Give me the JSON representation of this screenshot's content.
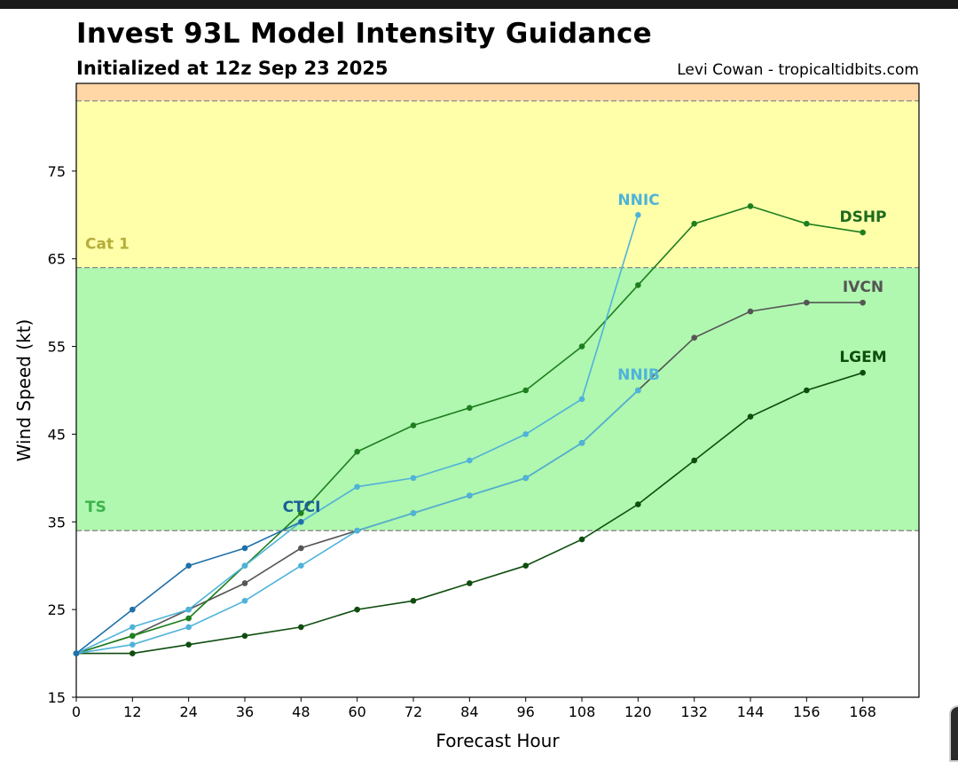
{
  "title": "Invest 93L Model Intensity Guidance",
  "subtitle": "Initialized at 12z Sep 23 2025",
  "credit": "Levi Cowan - tropicaltidbits.com",
  "chart_data": {
    "type": "line",
    "xlabel": "Forecast Hour",
    "ylabel": "Wind Speed (kt)",
    "xlim": [
      0,
      180
    ],
    "ylim": [
      15,
      85
    ],
    "xticks": [
      0,
      12,
      24,
      36,
      48,
      60,
      72,
      84,
      96,
      108,
      120,
      132,
      144,
      156,
      168
    ],
    "yticks": [
      15,
      25,
      35,
      45,
      55,
      65,
      75
    ],
    "bands": [
      {
        "label": "TS",
        "from": 34,
        "to": 64,
        "color": "#b0f7b0",
        "label_color": "#3cb44b"
      },
      {
        "label": "Cat 1",
        "from": 64,
        "to": 83,
        "color": "#ffffaa",
        "label_color": "#b5ad3b"
      },
      {
        "label": "",
        "from": 83,
        "to": 85,
        "color": "#ffd6a6",
        "label_color": "#d08040"
      }
    ],
    "series": [
      {
        "name": "LGEM",
        "color": "#0f4d0f",
        "label_color": "#0f4d0f",
        "x": [
          0,
          12,
          24,
          36,
          48,
          60,
          72,
          84,
          96,
          108,
          120,
          132,
          144,
          156,
          168
        ],
        "y": [
          20,
          20,
          21,
          22,
          23,
          25,
          26,
          28,
          30,
          33,
          37,
          42,
          47,
          50,
          52
        ]
      },
      {
        "name": "IVCN",
        "color": "#555555",
        "label_color": "#555555",
        "x": [
          0,
          12,
          24,
          36,
          48,
          60,
          72,
          84,
          96,
          108,
          120,
          132,
          144,
          156,
          168
        ],
        "y": [
          20,
          22,
          25,
          28,
          32,
          34,
          36,
          38,
          40,
          44,
          50,
          56,
          59,
          60,
          60
        ]
      },
      {
        "name": "DSHP",
        "color": "#1e7f1e",
        "label_color": "#1e6b1e",
        "x": [
          0,
          12,
          24,
          36,
          48,
          60,
          72,
          84,
          96,
          108,
          120,
          132,
          144,
          156,
          168
        ],
        "y": [
          20,
          22,
          24,
          30,
          36,
          43,
          46,
          48,
          50,
          55,
          62,
          69,
          71,
          69,
          68
        ]
      },
      {
        "name": "NNIB",
        "color": "#4fb3d9",
        "label_color": "#4fb3d9",
        "x": [
          0,
          12,
          24,
          36,
          48,
          60,
          72,
          84,
          96,
          108,
          120
        ],
        "y": [
          20,
          21,
          23,
          26,
          30,
          34,
          36,
          38,
          40,
          44,
          50
        ]
      },
      {
        "name": "NNIC",
        "color": "#4fb3d9",
        "label_color": "#4fb3d9",
        "x": [
          0,
          12,
          24,
          36,
          48,
          60,
          72,
          84,
          96,
          108,
          120
        ],
        "y": [
          20,
          23,
          25,
          30,
          35,
          39,
          40,
          42,
          45,
          49,
          70
        ]
      },
      {
        "name": "CTCI",
        "color": "#1f6fa8",
        "label_color": "#1a5f95",
        "x": [
          0,
          12,
          24,
          36,
          48
        ],
        "y": [
          20,
          25,
          30,
          32,
          35
        ]
      }
    ]
  }
}
